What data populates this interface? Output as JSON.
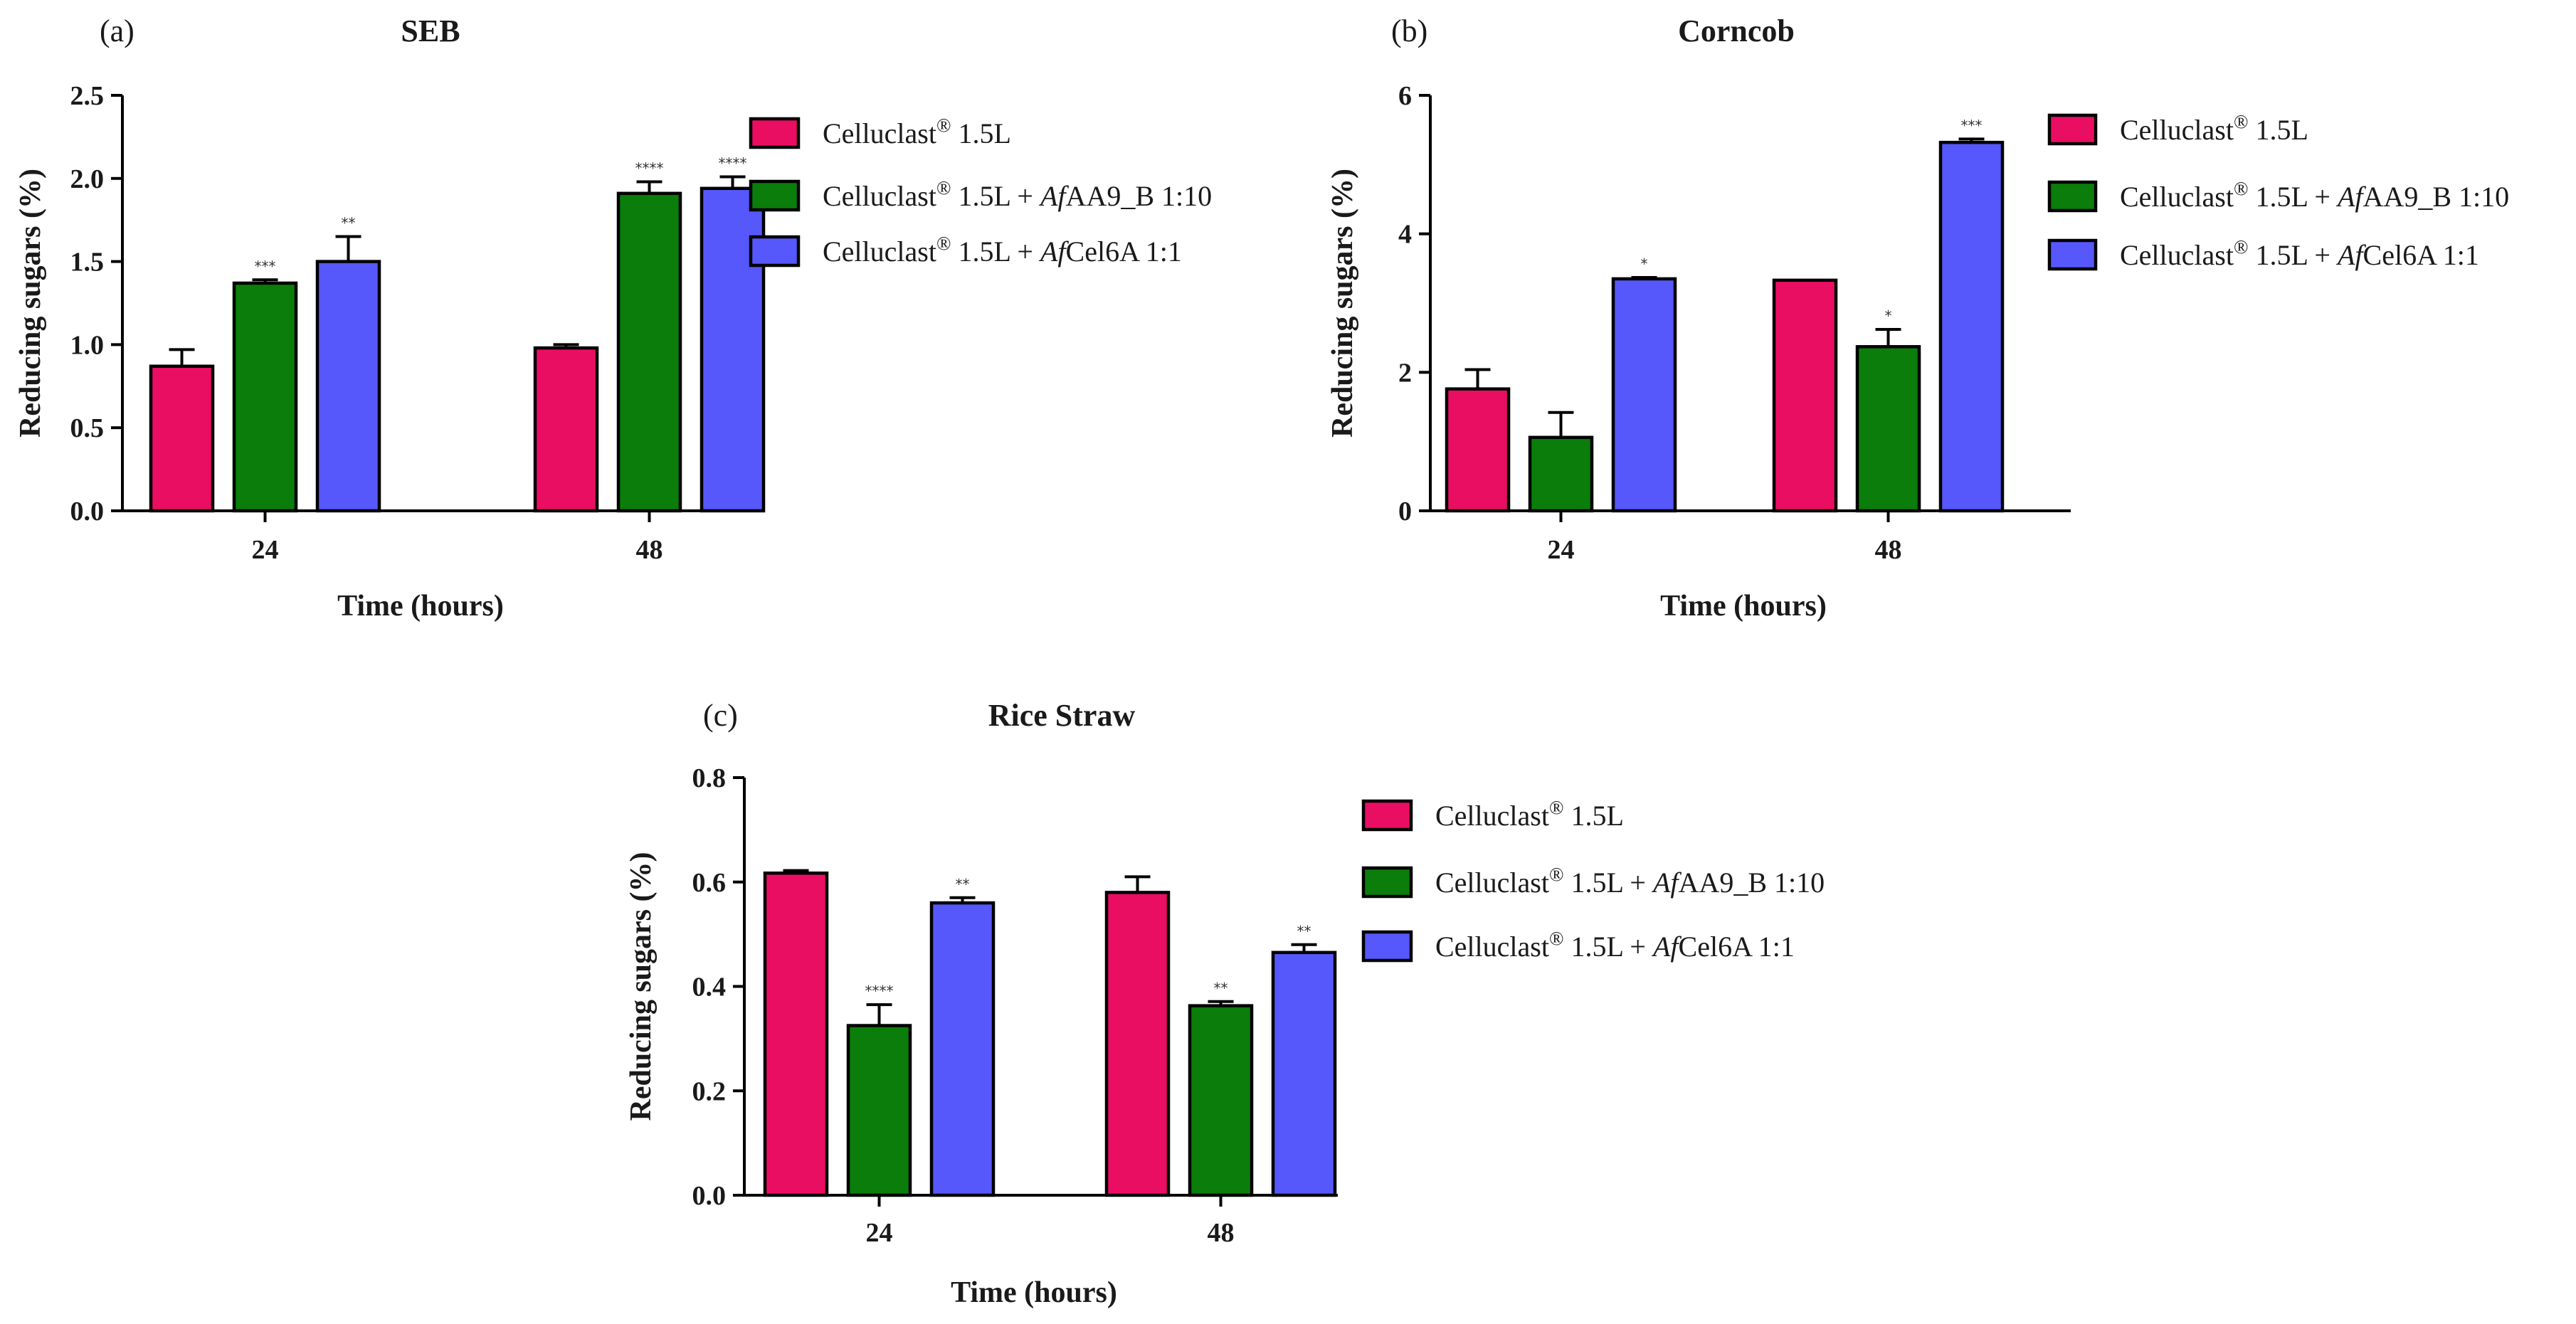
{
  "colors": {
    "series": [
      "#ea0e63",
      "#0a7d0a",
      "#5658fc"
    ]
  },
  "legend_entries": [
    {
      "base": "Celluclast",
      "sup": "®",
      "rest": " 1.5L",
      "italic": "",
      "tail": ""
    },
    {
      "base": "Celluclast",
      "sup": "®",
      "rest": " 1.5L + ",
      "italic": "Af",
      "tail": "AA9_B 1:10"
    },
    {
      "base": "Celluclast",
      "sup": "®",
      "rest": " 1.5L + ",
      "italic": "Af",
      "tail": "Cel6A 1:1"
    }
  ],
  "chart_data": [
    {
      "panel": "(a)",
      "type": "bar",
      "title": "SEB",
      "xlabel": "Time (hours)",
      "ylabel": "Reducing sugars (%)",
      "categories": [
        "24",
        "48"
      ],
      "ylim": [
        0,
        2.5
      ],
      "yticks": [
        "0.0",
        "0.5",
        "1.0",
        "1.5",
        "2.0",
        "2.5"
      ],
      "legend_position": "right",
      "series": [
        {
          "name": "Celluclast® 1.5L",
          "values": [
            0.87,
            0.98
          ],
          "errors": [
            0.1,
            0.02
          ],
          "significance": [
            "",
            ""
          ]
        },
        {
          "name": "Celluclast® 1.5L + AfAA9_B 1:10",
          "values": [
            1.37,
            1.91
          ],
          "errors": [
            0.02,
            0.07
          ],
          "significance": [
            "***",
            "****"
          ]
        },
        {
          "name": "Celluclast® 1.5L + AfCel6A 1:1",
          "values": [
            1.5,
            1.94
          ],
          "errors": [
            0.15,
            0.07
          ],
          "significance": [
            "**",
            "****"
          ]
        }
      ]
    },
    {
      "panel": "(b)",
      "type": "bar",
      "title": "Corncob",
      "xlabel": "Time (hours)",
      "ylabel": "Reducing sugars (%)",
      "categories": [
        "24",
        "48"
      ],
      "ylim": [
        0,
        6
      ],
      "yticks": [
        "0",
        "2",
        "4",
        "6"
      ],
      "legend_position": "right",
      "series": [
        {
          "name": "Celluclast® 1.5L",
          "values": [
            1.76,
            3.33
          ],
          "errors": [
            0.28,
            0.0
          ],
          "significance": [
            "",
            ""
          ]
        },
        {
          "name": "Celluclast® 1.5L + AfAA9_B 1:10",
          "values": [
            1.06,
            2.37
          ],
          "errors": [
            0.36,
            0.25
          ],
          "significance": [
            "",
            "*"
          ]
        },
        {
          "name": "Celluclast® 1.5L + AfCel6A 1:1",
          "values": [
            3.35,
            5.32
          ],
          "errors": [
            0.02,
            0.05
          ],
          "significance": [
            "*",
            "***"
          ]
        }
      ]
    },
    {
      "panel": "(c)",
      "type": "bar",
      "title": "Rice Straw",
      "xlabel": "Time (hours)",
      "ylabel": "Reducing sugars (%)",
      "categories": [
        "24",
        "48"
      ],
      "ylim": [
        0,
        0.8
      ],
      "yticks": [
        "0.0",
        "0.2",
        "0.4",
        "0.6",
        "0.8"
      ],
      "legend_position": "right",
      "series": [
        {
          "name": "Celluclast® 1.5L",
          "values": [
            0.617,
            0.58
          ],
          "errors": [
            0.005,
            0.03
          ],
          "significance": [
            "",
            ""
          ]
        },
        {
          "name": "Celluclast® 1.5L + AfAA9_B 1:10",
          "values": [
            0.325,
            0.363
          ],
          "errors": [
            0.04,
            0.008
          ],
          "significance": [
            "****",
            "**"
          ]
        },
        {
          "name": "Celluclast® 1.5L + AfCel6A 1:1",
          "values": [
            0.56,
            0.465
          ],
          "errors": [
            0.01,
            0.015
          ],
          "significance": [
            "**",
            "**"
          ]
        }
      ]
    }
  ]
}
